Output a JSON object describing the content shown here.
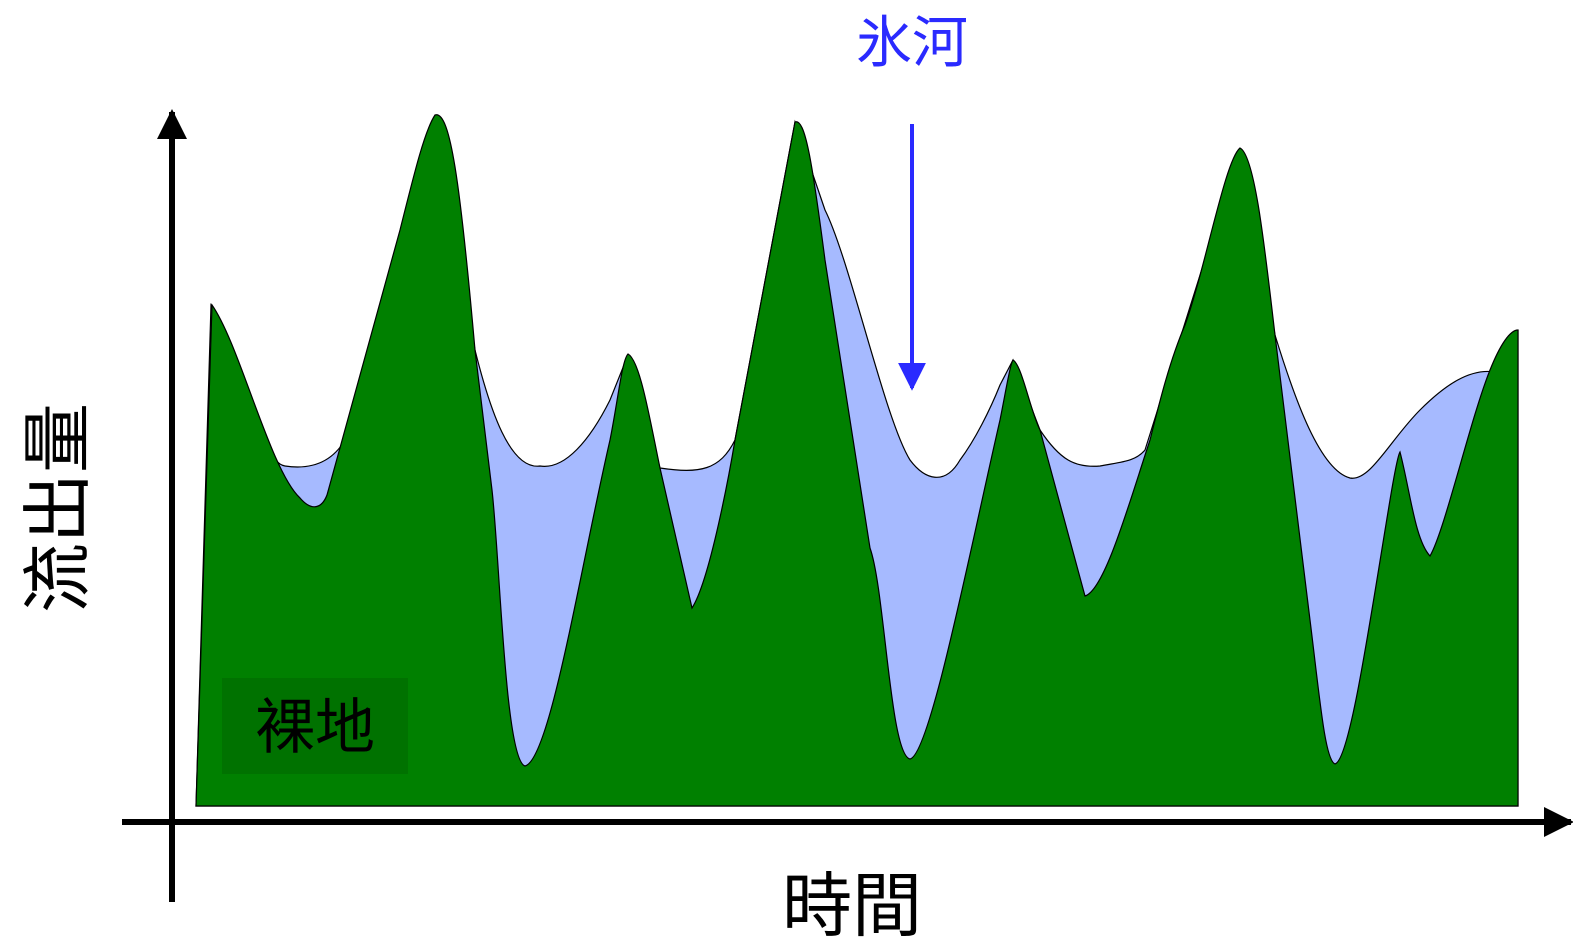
{
  "diagram": {
    "glacier_label": "氷河",
    "bare_ground_label": "裸地",
    "y_axis_label": "流出量",
    "x_axis_label": "時間"
  },
  "colors": {
    "bare_ground_fill": "#008000",
    "glacier_fill": "#a6baff",
    "label_box_fill": "#007200",
    "glacier_label_color": "#2a2aff",
    "axis_color": "#000000"
  }
}
